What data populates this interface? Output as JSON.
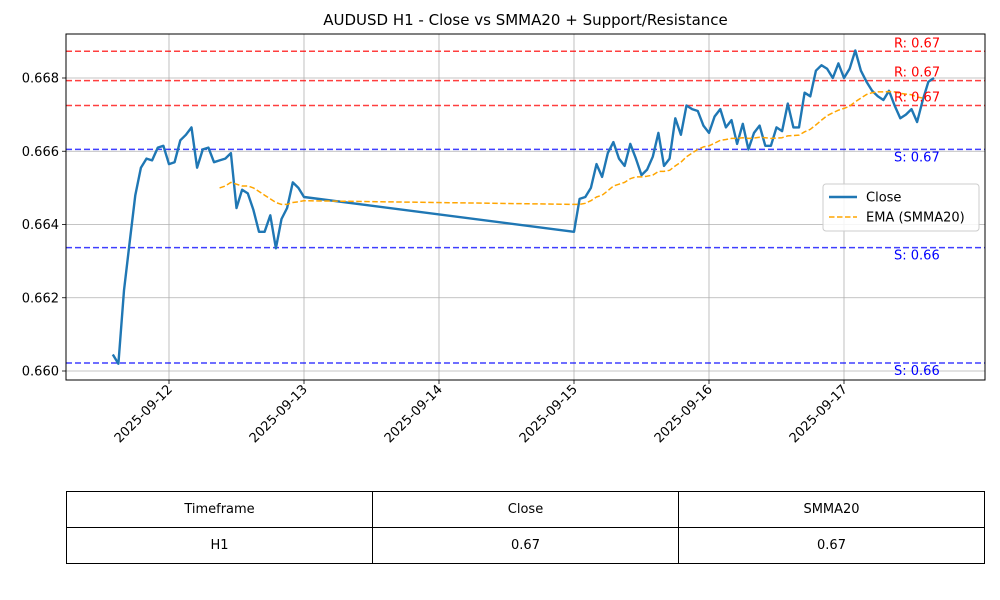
{
  "chart_data": {
    "type": "line",
    "title": "AUDUSD H1 - Close vs SMMA20 + Support/Resistance",
    "xlabel": "",
    "ylabel": "",
    "ylim": [
      0.6598,
      0.6692
    ],
    "grid": true,
    "legend_placement": "center-right",
    "x_ticks": [
      "2025-09-12",
      "2025-09-13",
      "2025-09-14",
      "2025-09-15",
      "2025-09-16",
      "2025-09-17"
    ],
    "y_ticks": [
      "0.660",
      "0.662",
      "0.664",
      "0.666",
      "0.668"
    ],
    "series": [
      {
        "name": "Close",
        "color": "#1f77b4",
        "style": "solid",
        "points": [
          [
            "2025-09-11 14:00",
            0.66045
          ],
          [
            "2025-09-11 15:00",
            0.6602
          ],
          [
            "2025-09-11 16:00",
            0.6622
          ],
          [
            "2025-09-11 17:00",
            0.6635
          ],
          [
            "2025-09-11 18:00",
            0.6648
          ],
          [
            "2025-09-11 19:00",
            0.66555
          ],
          [
            "2025-09-11 20:00",
            0.6658
          ],
          [
            "2025-09-11 21:00",
            0.66575
          ],
          [
            "2025-09-11 22:00",
            0.6661
          ],
          [
            "2025-09-11 23:00",
            0.66615
          ],
          [
            "2025-09-12 00:00",
            0.66565
          ],
          [
            "2025-09-12 01:00",
            0.6657
          ],
          [
            "2025-09-12 02:00",
            0.6663
          ],
          [
            "2025-09-12 03:00",
            0.66645
          ],
          [
            "2025-09-12 04:00",
            0.66665
          ],
          [
            "2025-09-12 05:00",
            0.66555
          ],
          [
            "2025-09-12 06:00",
            0.66605
          ],
          [
            "2025-09-12 07:00",
            0.6661
          ],
          [
            "2025-09-12 08:00",
            0.6657
          ],
          [
            "2025-09-12 09:00",
            0.66575
          ],
          [
            "2025-09-12 10:00",
            0.6658
          ],
          [
            "2025-09-12 11:00",
            0.66595
          ],
          [
            "2025-09-12 12:00",
            0.66445
          ],
          [
            "2025-09-12 13:00",
            0.66495
          ],
          [
            "2025-09-12 14:00",
            0.66485
          ],
          [
            "2025-09-12 15:00",
            0.6644
          ],
          [
            "2025-09-12 16:00",
            0.6638
          ],
          [
            "2025-09-12 17:00",
            0.6638
          ],
          [
            "2025-09-12 18:00",
            0.66425
          ],
          [
            "2025-09-12 19:00",
            0.66335
          ],
          [
            "2025-09-12 20:00",
            0.66415
          ],
          [
            "2025-09-12 21:00",
            0.66445
          ],
          [
            "2025-09-12 22:00",
            0.66515
          ],
          [
            "2025-09-12 23:00",
            0.665
          ],
          [
            "2025-09-13 00:00",
            0.66475
          ],
          [
            "2025-09-15 00:00",
            0.6638
          ],
          [
            "2025-09-15 01:00",
            0.6647
          ],
          [
            "2025-09-15 02:00",
            0.66475
          ],
          [
            "2025-09-15 03:00",
            0.665
          ],
          [
            "2025-09-15 04:00",
            0.66565
          ],
          [
            "2025-09-15 05:00",
            0.6653
          ],
          [
            "2025-09-15 06:00",
            0.66595
          ],
          [
            "2025-09-15 07:00",
            0.66625
          ],
          [
            "2025-09-15 08:00",
            0.6658
          ],
          [
            "2025-09-15 09:00",
            0.6656
          ],
          [
            "2025-09-15 10:00",
            0.6662
          ],
          [
            "2025-09-15 11:00",
            0.6658
          ],
          [
            "2025-09-15 12:00",
            0.66535
          ],
          [
            "2025-09-15 13:00",
            0.6655
          ],
          [
            "2025-09-15 14:00",
            0.66585
          ],
          [
            "2025-09-15 15:00",
            0.6665
          ],
          [
            "2025-09-15 16:00",
            0.6656
          ],
          [
            "2025-09-15 17:00",
            0.6658
          ],
          [
            "2025-09-15 18:00",
            0.6669
          ],
          [
            "2025-09-15 19:00",
            0.66645
          ],
          [
            "2025-09-15 20:00",
            0.66725
          ],
          [
            "2025-09-15 21:00",
            0.66715
          ],
          [
            "2025-09-15 22:00",
            0.6671
          ],
          [
            "2025-09-15 23:00",
            0.6667
          ],
          [
            "2025-09-16 00:00",
            0.6665
          ],
          [
            "2025-09-16 01:00",
            0.66695
          ],
          [
            "2025-09-16 02:00",
            0.66715
          ],
          [
            "2025-09-16 03:00",
            0.66665
          ],
          [
            "2025-09-16 04:00",
            0.66685
          ],
          [
            "2025-09-16 05:00",
            0.6662
          ],
          [
            "2025-09-16 06:00",
            0.66675
          ],
          [
            "2025-09-16 07:00",
            0.66605
          ],
          [
            "2025-09-16 08:00",
            0.6665
          ],
          [
            "2025-09-16 09:00",
            0.6667
          ],
          [
            "2025-09-16 10:00",
            0.66615
          ],
          [
            "2025-09-16 11:00",
            0.66615
          ],
          [
            "2025-09-16 12:00",
            0.66665
          ],
          [
            "2025-09-16 13:00",
            0.66655
          ],
          [
            "2025-09-16 14:00",
            0.6673
          ],
          [
            "2025-09-16 15:00",
            0.66665
          ],
          [
            "2025-09-16 16:00",
            0.66665
          ],
          [
            "2025-09-16 17:00",
            0.6676
          ],
          [
            "2025-09-16 18:00",
            0.6675
          ],
          [
            "2025-09-16 19:00",
            0.6682
          ],
          [
            "2025-09-16 20:00",
            0.66835
          ],
          [
            "2025-09-16 21:00",
            0.66825
          ],
          [
            "2025-09-16 22:00",
            0.668
          ],
          [
            "2025-09-16 23:00",
            0.6684
          ],
          [
            "2025-09-17 00:00",
            0.668
          ],
          [
            "2025-09-17 01:00",
            0.66825
          ],
          [
            "2025-09-17 02:00",
            0.66875
          ],
          [
            "2025-09-17 03:00",
            0.6682
          ],
          [
            "2025-09-17 04:00",
            0.6679
          ],
          [
            "2025-09-17 05:00",
            0.66765
          ],
          [
            "2025-09-17 06:00",
            0.6675
          ],
          [
            "2025-09-17 07:00",
            0.6674
          ],
          [
            "2025-09-17 08:00",
            0.66765
          ],
          [
            "2025-09-17 09:00",
            0.66725
          ],
          [
            "2025-09-17 10:00",
            0.6669
          ],
          [
            "2025-09-17 11:00",
            0.667
          ],
          [
            "2025-09-17 12:00",
            0.66715
          ],
          [
            "2025-09-17 13:00",
            0.6668
          ],
          [
            "2025-09-17 14:00",
            0.6674
          ],
          [
            "2025-09-17 15:00",
            0.6679
          ],
          [
            "2025-09-17 16:00",
            0.668
          ]
        ]
      },
      {
        "name": "EMA (SMMA20)",
        "color": "#ffa500",
        "style": "dashed",
        "points": [
          [
            "2025-09-12 09:00",
            0.665
          ],
          [
            "2025-09-12 10:00",
            0.66505
          ],
          [
            "2025-09-12 11:00",
            0.66515
          ],
          [
            "2025-09-12 12:00",
            0.6651
          ],
          [
            "2025-09-12 13:00",
            0.66505
          ],
          [
            "2025-09-12 14:00",
            0.66505
          ],
          [
            "2025-09-12 15:00",
            0.665
          ],
          [
            "2025-09-12 16:00",
            0.6649
          ],
          [
            "2025-09-12 17:00",
            0.6648
          ],
          [
            "2025-09-12 18:00",
            0.6647
          ],
          [
            "2025-09-12 19:00",
            0.6646
          ],
          [
            "2025-09-12 20:00",
            0.66455
          ],
          [
            "2025-09-12 21:00",
            0.66455
          ],
          [
            "2025-09-12 22:00",
            0.6646
          ],
          [
            "2025-09-12 23:00",
            0.66462
          ],
          [
            "2025-09-13 00:00",
            0.66465
          ],
          [
            "2025-09-15 00:00",
            0.66455
          ],
          [
            "2025-09-15 01:00",
            0.66455
          ],
          [
            "2025-09-15 02:00",
            0.66458
          ],
          [
            "2025-09-15 03:00",
            0.66465
          ],
          [
            "2025-09-15 04:00",
            0.66475
          ],
          [
            "2025-09-15 05:00",
            0.6648
          ],
          [
            "2025-09-15 06:00",
            0.66492
          ],
          [
            "2025-09-15 07:00",
            0.66505
          ],
          [
            "2025-09-15 08:00",
            0.6651
          ],
          [
            "2025-09-15 09:00",
            0.66515
          ],
          [
            "2025-09-15 10:00",
            0.66525
          ],
          [
            "2025-09-15 11:00",
            0.6653
          ],
          [
            "2025-09-15 12:00",
            0.6653
          ],
          [
            "2025-09-15 13:00",
            0.66532
          ],
          [
            "2025-09-15 14:00",
            0.66535
          ],
          [
            "2025-09-15 15:00",
            0.66545
          ],
          [
            "2025-09-15 16:00",
            0.66545
          ],
          [
            "2025-09-15 17:00",
            0.66548
          ],
          [
            "2025-09-15 18:00",
            0.6656
          ],
          [
            "2025-09-15 19:00",
            0.6657
          ],
          [
            "2025-09-15 20:00",
            0.66585
          ],
          [
            "2025-09-15 21:00",
            0.66595
          ],
          [
            "2025-09-15 22:00",
            0.66605
          ],
          [
            "2025-09-15 23:00",
            0.66612
          ],
          [
            "2025-09-16 00:00",
            0.66615
          ],
          [
            "2025-09-16 01:00",
            0.66622
          ],
          [
            "2025-09-16 02:00",
            0.6663
          ],
          [
            "2025-09-16 03:00",
            0.66632
          ],
          [
            "2025-09-16 04:00",
            0.66635
          ],
          [
            "2025-09-16 05:00",
            0.66635
          ],
          [
            "2025-09-16 06:00",
            0.66637
          ],
          [
            "2025-09-16 07:00",
            0.66635
          ],
          [
            "2025-09-16 08:00",
            0.66636
          ],
          [
            "2025-09-16 09:00",
            0.66638
          ],
          [
            "2025-09-16 10:00",
            0.66637
          ],
          [
            "2025-09-16 11:00",
            0.66635
          ],
          [
            "2025-09-16 12:00",
            0.66636
          ],
          [
            "2025-09-16 13:00",
            0.66637
          ],
          [
            "2025-09-16 14:00",
            0.66642
          ],
          [
            "2025-09-16 15:00",
            0.66643
          ],
          [
            "2025-09-16 16:00",
            0.66644
          ],
          [
            "2025-09-16 17:00",
            0.66653
          ],
          [
            "2025-09-16 18:00",
            0.6666
          ],
          [
            "2025-09-16 19:00",
            0.66672
          ],
          [
            "2025-09-16 20:00",
            0.66685
          ],
          [
            "2025-09-16 21:00",
            0.66697
          ],
          [
            "2025-09-16 22:00",
            0.66705
          ],
          [
            "2025-09-16 23:00",
            0.66712
          ],
          [
            "2025-09-17 00:00",
            0.66717
          ],
          [
            "2025-09-17 01:00",
            0.66723
          ],
          [
            "2025-09-17 02:00",
            0.66735
          ],
          [
            "2025-09-17 03:00",
            0.66745
          ],
          [
            "2025-09-17 04:00",
            0.66755
          ],
          [
            "2025-09-17 05:00",
            0.6676
          ],
          [
            "2025-09-17 06:00",
            0.66762
          ],
          [
            "2025-09-17 07:00",
            0.66762
          ],
          [
            "2025-09-17 08:00",
            0.66763
          ],
          [
            "2025-09-17 09:00",
            0.66762
          ],
          [
            "2025-09-17 10:00",
            0.66758
          ],
          [
            "2025-09-17 11:00",
            0.66756
          ],
          [
            "2025-09-17 12:00",
            0.66754
          ],
          [
            "2025-09-17 13:00",
            0.66748
          ],
          [
            "2025-09-17 14:00",
            0.66745
          ]
        ]
      }
    ],
    "levels": [
      {
        "kind": "resistance",
        "label": "R: 0.67",
        "value": 0.66873,
        "color": "#ff0000"
      },
      {
        "kind": "resistance",
        "label": "R: 0.67",
        "value": 0.66793,
        "color": "#ff0000"
      },
      {
        "kind": "resistance",
        "label": "R: 0.67",
        "value": 0.66725,
        "color": "#ff0000"
      },
      {
        "kind": "support",
        "label": "S: 0.67",
        "value": 0.66605,
        "color": "#0000ff"
      },
      {
        "kind": "support",
        "label": "S: 0.66",
        "value": 0.66337,
        "color": "#0000ff"
      },
      {
        "kind": "support",
        "label": "S: 0.66",
        "value": 0.66022,
        "color": "#0000ff"
      }
    ]
  },
  "table": {
    "headers": [
      "Timeframe",
      "Close",
      "SMMA20"
    ],
    "row": [
      "H1",
      "0.67",
      "0.67"
    ]
  }
}
